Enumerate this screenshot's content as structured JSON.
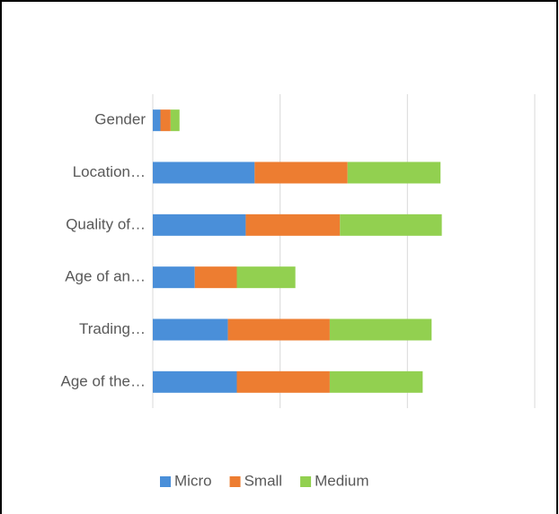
{
  "chart_data": {
    "type": "stacked_barh",
    "categories": [
      "Gender",
      "Location…",
      "Quality of…",
      "Age of an…",
      "Trading…",
      "Age of the…"
    ],
    "series": [
      {
        "name": "Micro",
        "color": "#4a8fd9",
        "values": [
          0.6,
          8.0,
          7.3,
          3.3,
          5.9,
          6.6
        ]
      },
      {
        "name": "Small",
        "color": "#ed7d31",
        "values": [
          0.8,
          7.3,
          7.4,
          3.3,
          8.0,
          7.3
        ]
      },
      {
        "name": "Medium",
        "color": "#92d050",
        "values": [
          0.7,
          7.3,
          8.0,
          4.6,
          8.0,
          7.3
        ]
      }
    ],
    "xlim": [
      0,
      30
    ],
    "xticks": [
      0,
      10,
      20,
      30
    ],
    "grid": true,
    "legend": "bottom"
  }
}
